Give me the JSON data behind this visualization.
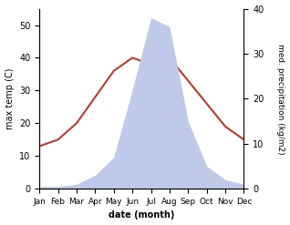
{
  "months": [
    "Jan",
    "Feb",
    "Mar",
    "Apr",
    "May",
    "Jun",
    "Jul",
    "Aug",
    "Sep",
    "Oct",
    "Nov",
    "Dec"
  ],
  "month_indices": [
    0,
    1,
    2,
    3,
    4,
    5,
    6,
    7,
    8,
    9,
    10,
    11
  ],
  "temperature": [
    13,
    15,
    20,
    28,
    36,
    40,
    38,
    40,
    33,
    26,
    19,
    15
  ],
  "precipitation": [
    0.5,
    0.5,
    1,
    3,
    7,
    22,
    38,
    36,
    15,
    5,
    2,
    1
  ],
  "temp_color": "#c0392b",
  "precip_fill_color": "#bfc9e8",
  "temp_ylim": [
    0,
    55
  ],
  "temp_yticks": [
    0,
    10,
    20,
    30,
    40,
    50
  ],
  "precip_ylim": [
    0,
    40
  ],
  "precip_yticks": [
    0,
    10,
    20,
    30,
    40
  ],
  "ylabel_left": "max temp (C)",
  "ylabel_right": "med. precipitation (kg/m2)",
  "xlabel": "date (month)",
  "background_color": "#ffffff",
  "line_width": 1.5,
  "tick_fontsize": 7,
  "label_fontsize": 7
}
